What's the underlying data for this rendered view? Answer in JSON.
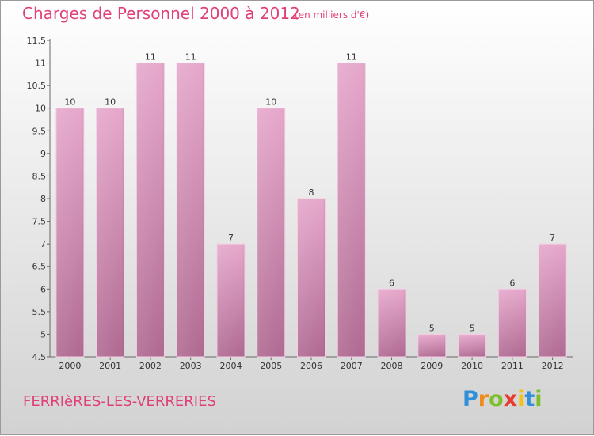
{
  "chart_data": {
    "type": "bar",
    "title": "Charges de Personnel 2000 à 2012",
    "subtitle": "(en milliers d'€)",
    "categories": [
      "2000",
      "2001",
      "2002",
      "2003",
      "2004",
      "2005",
      "2006",
      "2007",
      "2008",
      "2009",
      "2010",
      "2011",
      "2012"
    ],
    "values": [
      10,
      10,
      11,
      11,
      7,
      10,
      8,
      11,
      6,
      5,
      5,
      6,
      7
    ],
    "data_labels": [
      "10",
      "10",
      "11",
      "11",
      "7",
      "10",
      "8",
      "11",
      "6",
      "5",
      "5",
      "6",
      "7"
    ],
    "ylim": [
      4.5,
      11.5
    ],
    "yticks": [
      4.5,
      5,
      5.5,
      6,
      6.5,
      7,
      7.5,
      8,
      8.5,
      9,
      9.5,
      10,
      10.5,
      11,
      11.5
    ],
    "ytick_labels": [
      "4.5",
      "5",
      "5.5",
      "6",
      "6.5",
      "7",
      "7.5",
      "8",
      "8.5",
      "9",
      "9.5",
      "10",
      "10.5",
      "11",
      "11.5"
    ],
    "xlabel": "",
    "ylabel": "",
    "grid": false,
    "legend": "none",
    "colors": {
      "bar_top": "#e6a8cc",
      "bar_bottom": "#b06a92",
      "text_accent": "#e0407a"
    }
  },
  "footer": {
    "commune": "FERRIèRES-LES-VERRERIES",
    "logo_letters": [
      {
        "char": "P",
        "color": "#2f8fd8"
      },
      {
        "char": "r",
        "color": "#f08a1c"
      },
      {
        "char": "o",
        "color": "#7dbf2a"
      },
      {
        "char": "x",
        "color": "#e83a2e"
      },
      {
        "char": "i",
        "color": "#f2c21a"
      },
      {
        "char": "t",
        "color": "#2f8fd8"
      },
      {
        "char": "i",
        "color": "#7dbf2a"
      }
    ]
  }
}
